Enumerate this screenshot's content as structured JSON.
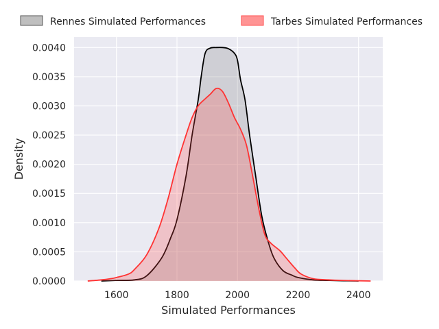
{
  "chart_data": {
    "type": "area",
    "xlabel": "Simulated Performances",
    "ylabel": "Density",
    "xlim": [
      1460,
      2480
    ],
    "ylim": [
      0,
      0.00418
    ],
    "x_ticks": [
      1600,
      1800,
      2000,
      2200,
      2400
    ],
    "x_tick_labels": [
      "1600",
      "1800",
      "2000",
      "2200",
      "2400"
    ],
    "y_ticks": [
      0,
      0.0005,
      0.001,
      0.0015,
      0.002,
      0.0025,
      0.003,
      0.0035,
      0.004
    ],
    "y_tick_labels": [
      "0.0000",
      "0.0005",
      "0.0010",
      "0.0015",
      "0.0020",
      "0.0025",
      "0.0030",
      "0.0035",
      "0.0040"
    ],
    "grid": true,
    "legend_position": "top",
    "series": [
      {
        "name": "Rennes Simulated Performances",
        "line_color": "#000000",
        "fill_color": "#808080",
        "points": [
          [
            1550,
            0.0
          ],
          [
            1600,
            1e-05
          ],
          [
            1660,
            2e-05
          ],
          [
            1700,
            9e-05
          ],
          [
            1750,
            0.0004
          ],
          [
            1780,
            0.00075
          ],
          [
            1800,
            0.00105
          ],
          [
            1830,
            0.0018
          ],
          [
            1850,
            0.0025
          ],
          [
            1870,
            0.0031
          ],
          [
            1880,
            0.0035
          ],
          [
            1893,
            0.0039
          ],
          [
            1910,
            0.00399
          ],
          [
            1930,
            0.004
          ],
          [
            1950,
            0.004
          ],
          [
            1970,
            0.00398
          ],
          [
            1990,
            0.0039
          ],
          [
            2000,
            0.00378
          ],
          [
            2010,
            0.00345
          ],
          [
            2025,
            0.0031
          ],
          [
            2040,
            0.0025
          ],
          [
            2060,
            0.0018
          ],
          [
            2080,
            0.00112
          ],
          [
            2100,
            0.0007
          ],
          [
            2120,
            0.0004
          ],
          [
            2150,
            0.00018
          ],
          [
            2180,
            0.0001
          ],
          [
            2200,
            6e-05
          ],
          [
            2250,
            2e-05
          ],
          [
            2300,
            1e-05
          ],
          [
            2400,
            0.0
          ]
        ]
      },
      {
        "name": "Tarbes Simulated Performances",
        "line_color": "#ff3333",
        "fill_color": "#ff4d4d",
        "points": [
          [
            1505,
            0.0
          ],
          [
            1550,
            2e-05
          ],
          [
            1580,
            4e-05
          ],
          [
            1600,
            6e-05
          ],
          [
            1640,
            0.00012
          ],
          [
            1660,
            0.0002
          ],
          [
            1700,
            0.00045
          ],
          [
            1740,
            0.0009
          ],
          [
            1770,
            0.0014
          ],
          [
            1800,
            0.002
          ],
          [
            1830,
            0.0025
          ],
          [
            1850,
            0.0028
          ],
          [
            1870,
            0.003
          ],
          [
            1893,
            0.00312
          ],
          [
            1910,
            0.0032
          ],
          [
            1930,
            0.0033
          ],
          [
            1950,
            0.00325
          ],
          [
            1970,
            0.00305
          ],
          [
            1990,
            0.0028
          ],
          [
            2010,
            0.0026
          ],
          [
            2030,
            0.00232
          ],
          [
            2050,
            0.0018
          ],
          [
            2070,
            0.00125
          ],
          [
            2090,
            0.0008
          ],
          [
            2110,
            0.00065
          ],
          [
            2140,
            0.00052
          ],
          [
            2160,
            0.0004
          ],
          [
            2190,
            0.00022
          ],
          [
            2210,
            0.00012
          ],
          [
            2250,
            4e-05
          ],
          [
            2300,
            2e-05
          ],
          [
            2350,
            1e-05
          ],
          [
            2440,
            0.0
          ]
        ]
      }
    ]
  }
}
